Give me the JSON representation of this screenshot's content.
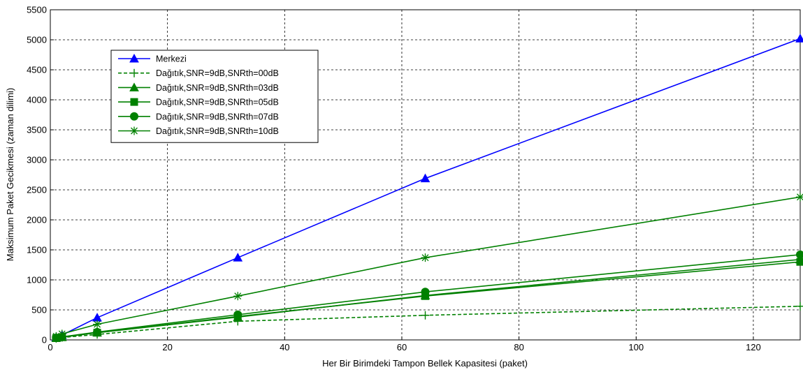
{
  "chart_data": {
    "type": "line",
    "title": "",
    "xlabel": "Her Bir Birimdeki Tampon Bellek Kapasitesi (paket)",
    "ylabel": "Maksimum Paket Gecikmesi (zaman dilimi)",
    "xlim": [
      0,
      128
    ],
    "ylim": [
      0,
      5500
    ],
    "xticks": [
      "0",
      "20",
      "40",
      "60",
      "80",
      "100",
      "120"
    ],
    "yticks": [
      "0",
      "500",
      "1000",
      "1500",
      "2000",
      "2500",
      "3000",
      "3500",
      "4000",
      "4500",
      "5000",
      "5500"
    ],
    "grid": true,
    "legend_position": "upper-left",
    "x": [
      1,
      2,
      8,
      32,
      64,
      128
    ],
    "series": [
      {
        "name": "Merkezi",
        "color": "#0000ff",
        "marker": "triangle",
        "dash": "solid",
        "values": [
          40,
          80,
          370,
          1370,
          2690,
          5020
        ]
      },
      {
        "name": "Dağıtık,SNR=9dB,SNRth=00dB",
        "color": "#008000",
        "marker": "plus",
        "dash": "dashed",
        "values": [
          25,
          40,
          90,
          310,
          410,
          560
        ]
      },
      {
        "name": "Dağıtık,SNR=9dB,SNRth=03dB",
        "color": "#008000",
        "marker": "triangle",
        "dash": "solid",
        "values": [
          30,
          45,
          120,
          380,
          740,
          1340
        ]
      },
      {
        "name": "Dağıtık,SNR=9dB,SNRth=05dB",
        "color": "#008000",
        "marker": "square",
        "dash": "solid",
        "values": [
          30,
          45,
          120,
          390,
          730,
          1300
        ]
      },
      {
        "name": "Dağıtık,SNR=9dB,SNRth=07dB",
        "color": "#008000",
        "marker": "circle",
        "dash": "solid",
        "values": [
          35,
          50,
          130,
          420,
          800,
          1420
        ]
      },
      {
        "name": "Dağıtık,SNR=9dB,SNRth=10dB",
        "color": "#008000",
        "marker": "star",
        "dash": "solid",
        "values": [
          60,
          100,
          260,
          730,
          1370,
          2380
        ]
      }
    ]
  }
}
